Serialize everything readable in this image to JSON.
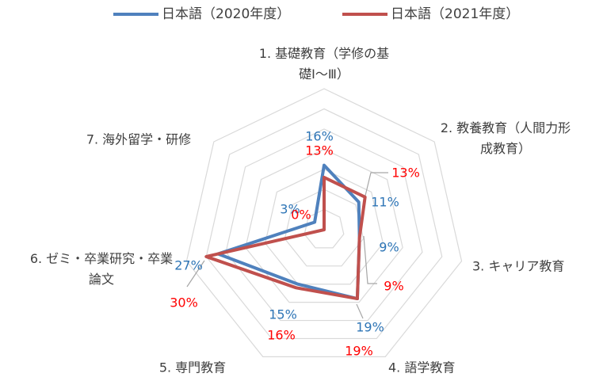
{
  "chart_data": {
    "type": "radar",
    "categories": [
      "1. 基礎教育（学修の基礎Ⅰ～Ⅲ）",
      "2. 教養教育（人間力形成教育）",
      "3. キャリア教育",
      "4. 語学教育",
      "5. 専門教育",
      "6. ゼミ・卒業研究・卒業論文",
      "7. 海外留学・研修"
    ],
    "series": [
      {
        "name": "日本語（2020年度）",
        "color": "#4f81bd",
        "label_color": "#2e75b6",
        "values": [
          16,
          11,
          9,
          19,
          15,
          27,
          3
        ],
        "value_labels": [
          "16%",
          "11%",
          "9%",
          "19%",
          "15%",
          "27%",
          "3%"
        ]
      },
      {
        "name": "日本語（2021年度）",
        "color": "#c0504d",
        "label_color": "#ff0000",
        "values": [
          13,
          13,
          9,
          19,
          16,
          30,
          0
        ],
        "value_labels": [
          "13%",
          "13%",
          "9%",
          "19%",
          "16%",
          "30%",
          "0%"
        ]
      }
    ],
    "ylim": [
      0,
      35
    ],
    "yticks": [
      0,
      5,
      10,
      15,
      20,
      25,
      30,
      35
    ],
    "grid": true,
    "legend": "top"
  }
}
